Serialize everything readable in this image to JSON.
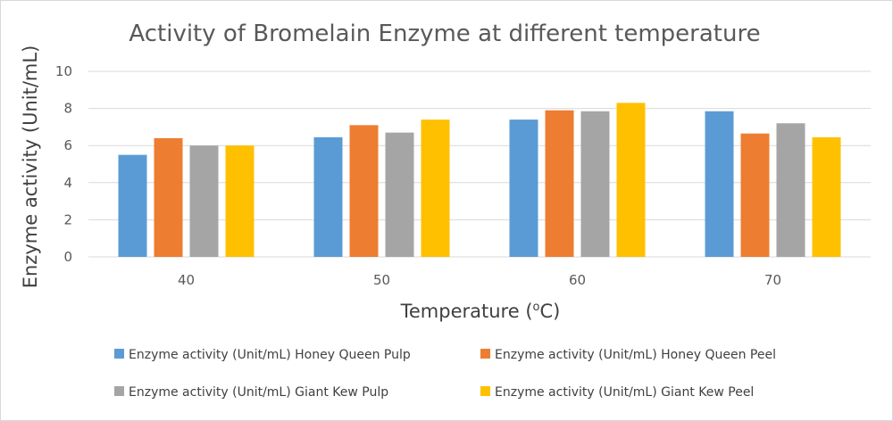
{
  "chart_data": {
    "type": "bar",
    "title": "Activity of Bromelain Enzyme at different temperature",
    "xlabel": "Temperature (",
    "xlabel_superscript": "o",
    "xlabel_suffix": "C)",
    "ylabel": "Enzyme activity (Unit/mL)",
    "categories": [
      "40",
      "50",
      "60",
      "70"
    ],
    "ylim": [
      0,
      10
    ],
    "yticks": [
      0,
      2,
      4,
      6,
      8,
      10
    ],
    "grid": true,
    "legend_position": "bottom",
    "series": [
      {
        "name": "Enzyme activity (Unit/mL)  Honey Queen  Pulp",
        "color": "#5b9bd5",
        "values": [
          5.5,
          6.45,
          7.4,
          7.85
        ]
      },
      {
        "name": "Enzyme activity (Unit/mL)  Honey Queen  Peel",
        "color": "#ed7d31",
        "values": [
          6.4,
          7.1,
          7.9,
          6.65
        ]
      },
      {
        "name": "Enzyme activity (Unit/mL)  Giant Kew Pulp",
        "color": "#a5a5a5",
        "values": [
          6.0,
          6.7,
          7.85,
          7.2
        ]
      },
      {
        "name": "Enzyme activity (Unit/mL)  Giant Kew Peel",
        "color": "#ffc000",
        "values": [
          6.0,
          7.4,
          8.3,
          6.45
        ]
      }
    ]
  }
}
